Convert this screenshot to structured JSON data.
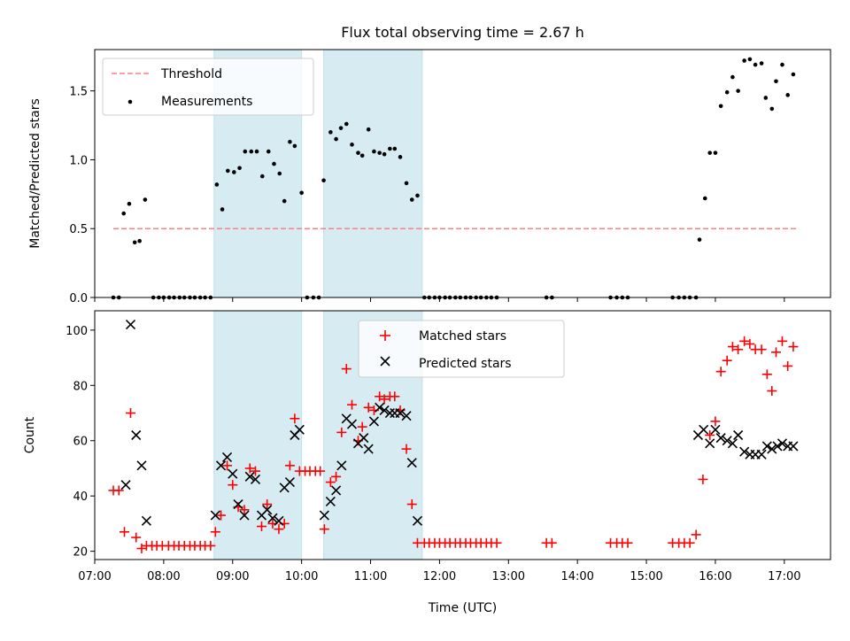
{
  "chart_data": [
    {
      "type": "scatter",
      "title": "Flux total observing time = 2.67 h",
      "xlabel": "",
      "ylabel": "Matched/Predicted stars",
      "xlim": [
        7.0,
        17.67
      ],
      "ylim": [
        0,
        1.8
      ],
      "yticks": [
        0.0,
        0.5,
        1.0,
        1.5
      ],
      "ytick_labels": [
        "0.0",
        "0.5",
        "1.0",
        "1.5"
      ],
      "grid": false,
      "legend_position": "top-left",
      "shaded_intervals": [
        [
          8.73,
          10.0
        ],
        [
          10.32,
          11.75
        ]
      ],
      "shade_color": "#add8e6",
      "threshold": {
        "name": "Threshold",
        "value": 0.5,
        "x_range": [
          7.27,
          17.17
        ],
        "color": "#ff7f7f"
      },
      "series": [
        {
          "name": "Measurements",
          "color": "#000000",
          "points": [
            [
              7.27,
              0
            ],
            [
              7.35,
              0
            ],
            [
              7.42,
              0.61
            ],
            [
              7.5,
              0.68
            ],
            [
              7.58,
              0.4
            ],
            [
              7.65,
              0.41
            ],
            [
              7.73,
              0.71
            ],
            [
              7.85,
              0
            ],
            [
              7.93,
              0
            ],
            [
              8.0,
              0
            ],
            [
              8.08,
              0
            ],
            [
              8.15,
              0
            ],
            [
              8.23,
              0
            ],
            [
              8.3,
              0
            ],
            [
              8.38,
              0
            ],
            [
              8.45,
              0
            ],
            [
              8.53,
              0
            ],
            [
              8.6,
              0
            ],
            [
              8.68,
              0
            ],
            [
              8.77,
              0.82
            ],
            [
              8.85,
              0.64
            ],
            [
              8.93,
              0.92
            ],
            [
              9.02,
              0.91
            ],
            [
              9.1,
              0.94
            ],
            [
              9.18,
              1.06
            ],
            [
              9.27,
              1.06
            ],
            [
              9.35,
              1.06
            ],
            [
              9.43,
              0.88
            ],
            [
              9.52,
              1.06
            ],
            [
              9.6,
              0.97
            ],
            [
              9.68,
              0.9
            ],
            [
              9.75,
              0.7
            ],
            [
              9.83,
              1.13
            ],
            [
              9.9,
              1.1
            ],
            [
              10.0,
              0.76
            ],
            [
              10.08,
              0
            ],
            [
              10.17,
              0
            ],
            [
              10.25,
              0
            ],
            [
              10.32,
              0.85
            ],
            [
              10.42,
              1.2
            ],
            [
              10.5,
              1.15
            ],
            [
              10.57,
              1.23
            ],
            [
              10.65,
              1.26
            ],
            [
              10.73,
              1.11
            ],
            [
              10.82,
              1.05
            ],
            [
              10.88,
              1.03
            ],
            [
              10.97,
              1.22
            ],
            [
              11.05,
              1.06
            ],
            [
              11.13,
              1.05
            ],
            [
              11.2,
              1.04
            ],
            [
              11.28,
              1.08
            ],
            [
              11.35,
              1.08
            ],
            [
              11.43,
              1.02
            ],
            [
              11.52,
              0.83
            ],
            [
              11.6,
              0.71
            ],
            [
              11.68,
              0.74
            ],
            [
              11.78,
              0
            ],
            [
              11.85,
              0
            ],
            [
              11.93,
              0
            ],
            [
              12.0,
              0
            ],
            [
              12.08,
              0
            ],
            [
              12.15,
              0
            ],
            [
              12.23,
              0
            ],
            [
              12.3,
              0
            ],
            [
              12.38,
              0
            ],
            [
              12.45,
              0
            ],
            [
              12.53,
              0
            ],
            [
              12.6,
              0
            ],
            [
              12.68,
              0
            ],
            [
              12.75,
              0
            ],
            [
              12.83,
              0
            ],
            [
              13.55,
              0
            ],
            [
              13.63,
              0
            ],
            [
              14.48,
              0
            ],
            [
              14.57,
              0
            ],
            [
              14.65,
              0
            ],
            [
              14.73,
              0
            ],
            [
              15.38,
              0
            ],
            [
              15.47,
              0
            ],
            [
              15.55,
              0
            ],
            [
              15.63,
              0
            ],
            [
              15.72,
              0
            ],
            [
              15.77,
              0.42
            ],
            [
              15.85,
              0.72
            ],
            [
              15.92,
              1.05
            ],
            [
              16.0,
              1.05
            ],
            [
              16.08,
              1.39
            ],
            [
              16.17,
              1.49
            ],
            [
              16.25,
              1.6
            ],
            [
              16.33,
              1.5
            ],
            [
              16.42,
              1.72
            ],
            [
              16.5,
              1.73
            ],
            [
              16.58,
              1.69
            ],
            [
              16.67,
              1.7
            ],
            [
              16.73,
              1.45
            ],
            [
              16.82,
              1.37
            ],
            [
              16.88,
              1.57
            ],
            [
              16.97,
              1.69
            ],
            [
              17.05,
              1.47
            ],
            [
              17.13,
              1.62
            ]
          ]
        }
      ]
    },
    {
      "type": "scatter",
      "title": "",
      "xlabel": "Time (UTC)",
      "ylabel": "Count",
      "xlim": [
        7.0,
        17.67
      ],
      "ylim": [
        17,
        107
      ],
      "yticks": [
        20,
        40,
        60,
        80,
        100
      ],
      "ytick_labels": [
        "20",
        "40",
        "60",
        "80",
        "100"
      ],
      "xticks": [
        7,
        8,
        9,
        10,
        11,
        12,
        13,
        14,
        15,
        16,
        17
      ],
      "xtick_labels": [
        "07:00",
        "08:00",
        "09:00",
        "10:00",
        "11:00",
        "12:00",
        "13:00",
        "14:00",
        "15:00",
        "16:00",
        "17:00"
      ],
      "grid": false,
      "legend_position": "top-center",
      "shaded_intervals": [
        [
          8.73,
          10.0
        ],
        [
          10.32,
          11.75
        ]
      ],
      "shade_color": "#add8e6",
      "series": [
        {
          "name": "Matched stars",
          "marker": "plus",
          "color": "#ff0000",
          "points": [
            [
              7.27,
              42
            ],
            [
              7.35,
              42
            ],
            [
              7.43,
              27
            ],
            [
              7.52,
              70
            ],
            [
              7.6,
              25
            ],
            [
              7.68,
              21
            ],
            [
              7.75,
              22
            ],
            [
              7.83,
              22
            ],
            [
              7.9,
              22
            ],
            [
              7.98,
              22
            ],
            [
              8.07,
              22
            ],
            [
              8.15,
              22
            ],
            [
              8.22,
              22
            ],
            [
              8.3,
              22
            ],
            [
              8.38,
              22
            ],
            [
              8.45,
              22
            ],
            [
              8.53,
              22
            ],
            [
              8.6,
              22
            ],
            [
              8.68,
              22
            ],
            [
              8.75,
              27
            ],
            [
              8.83,
              33
            ],
            [
              8.92,
              51
            ],
            [
              9.0,
              44
            ],
            [
              9.08,
              36
            ],
            [
              9.17,
              35
            ],
            [
              9.25,
              50
            ],
            [
              9.33,
              49
            ],
            [
              9.42,
              29
            ],
            [
              9.5,
              37
            ],
            [
              9.58,
              30
            ],
            [
              9.67,
              28
            ],
            [
              9.75,
              30
            ],
            [
              9.83,
              51
            ],
            [
              9.9,
              68
            ],
            [
              9.97,
              49
            ],
            [
              10.05,
              49
            ],
            [
              10.12,
              49
            ],
            [
              10.2,
              49
            ],
            [
              10.27,
              49
            ],
            [
              10.33,
              28
            ],
            [
              10.42,
              45
            ],
            [
              10.5,
              47
            ],
            [
              10.58,
              63
            ],
            [
              10.65,
              86
            ],
            [
              10.73,
              73
            ],
            [
              10.82,
              60
            ],
            [
              10.88,
              65
            ],
            [
              10.97,
              72
            ],
            [
              11.05,
              71
            ],
            [
              11.13,
              76
            ],
            [
              11.2,
              75
            ],
            [
              11.28,
              76
            ],
            [
              11.35,
              76
            ],
            [
              11.43,
              71
            ],
            [
              11.52,
              57
            ],
            [
              11.6,
              37
            ],
            [
              11.68,
              23
            ],
            [
              11.78,
              23
            ],
            [
              11.85,
              23
            ],
            [
              11.93,
              23
            ],
            [
              12.0,
              23
            ],
            [
              12.08,
              23
            ],
            [
              12.15,
              23
            ],
            [
              12.23,
              23
            ],
            [
              12.3,
              23
            ],
            [
              12.38,
              23
            ],
            [
              12.45,
              23
            ],
            [
              12.53,
              23
            ],
            [
              12.6,
              23
            ],
            [
              12.68,
              23
            ],
            [
              12.75,
              23
            ],
            [
              12.83,
              23
            ],
            [
              13.55,
              23
            ],
            [
              13.63,
              23
            ],
            [
              14.48,
              23
            ],
            [
              14.57,
              23
            ],
            [
              14.65,
              23
            ],
            [
              14.73,
              23
            ],
            [
              15.38,
              23
            ],
            [
              15.47,
              23
            ],
            [
              15.55,
              23
            ],
            [
              15.63,
              23
            ],
            [
              15.72,
              26
            ],
            [
              15.82,
              46
            ],
            [
              15.92,
              62
            ],
            [
              16.0,
              67
            ],
            [
              16.08,
              85
            ],
            [
              16.17,
              89
            ],
            [
              16.25,
              94
            ],
            [
              16.33,
              93
            ],
            [
              16.42,
              96
            ],
            [
              16.5,
              95
            ],
            [
              16.58,
              93
            ],
            [
              16.67,
              93
            ],
            [
              16.75,
              84
            ],
            [
              16.82,
              78
            ],
            [
              16.88,
              92
            ],
            [
              16.97,
              96
            ],
            [
              17.05,
              87
            ],
            [
              17.13,
              94
            ]
          ]
        },
        {
          "name": "Predicted stars",
          "marker": "x",
          "color": "#000000",
          "points": [
            [
              7.45,
              44
            ],
            [
              7.52,
              102
            ],
            [
              7.6,
              62
            ],
            [
              7.68,
              51
            ],
            [
              7.75,
              31
            ],
            [
              8.75,
              33
            ],
            [
              8.83,
              51
            ],
            [
              8.92,
              54
            ],
            [
              9.0,
              48
            ],
            [
              9.08,
              37
            ],
            [
              9.17,
              33
            ],
            [
              9.25,
              47
            ],
            [
              9.33,
              46
            ],
            [
              9.42,
              33
            ],
            [
              9.5,
              35
            ],
            [
              9.58,
              32
            ],
            [
              9.67,
              31
            ],
            [
              9.75,
              43
            ],
            [
              9.83,
              45
            ],
            [
              9.9,
              62
            ],
            [
              9.97,
              64
            ],
            [
              10.33,
              33
            ],
            [
              10.42,
              38
            ],
            [
              10.5,
              42
            ],
            [
              10.58,
              51
            ],
            [
              10.65,
              68
            ],
            [
              10.73,
              66
            ],
            [
              10.82,
              59
            ],
            [
              10.9,
              61
            ],
            [
              10.97,
              57
            ],
            [
              11.05,
              67
            ],
            [
              11.13,
              72
            ],
            [
              11.2,
              71
            ],
            [
              11.28,
              70
            ],
            [
              11.35,
              70
            ],
            [
              11.43,
              70
            ],
            [
              11.52,
              69
            ],
            [
              11.6,
              52
            ],
            [
              11.68,
              31
            ],
            [
              15.75,
              62
            ],
            [
              15.83,
              64
            ],
            [
              15.92,
              59
            ],
            [
              16.0,
              64
            ],
            [
              16.08,
              61
            ],
            [
              16.17,
              60
            ],
            [
              16.25,
              59
            ],
            [
              16.33,
              62
            ],
            [
              16.42,
              56
            ],
            [
              16.5,
              55
            ],
            [
              16.58,
              55
            ],
            [
              16.67,
              55
            ],
            [
              16.75,
              58
            ],
            [
              16.82,
              57
            ],
            [
              16.9,
              58
            ],
            [
              16.97,
              59
            ],
            [
              17.05,
              58
            ],
            [
              17.13,
              58
            ]
          ]
        }
      ]
    }
  ]
}
